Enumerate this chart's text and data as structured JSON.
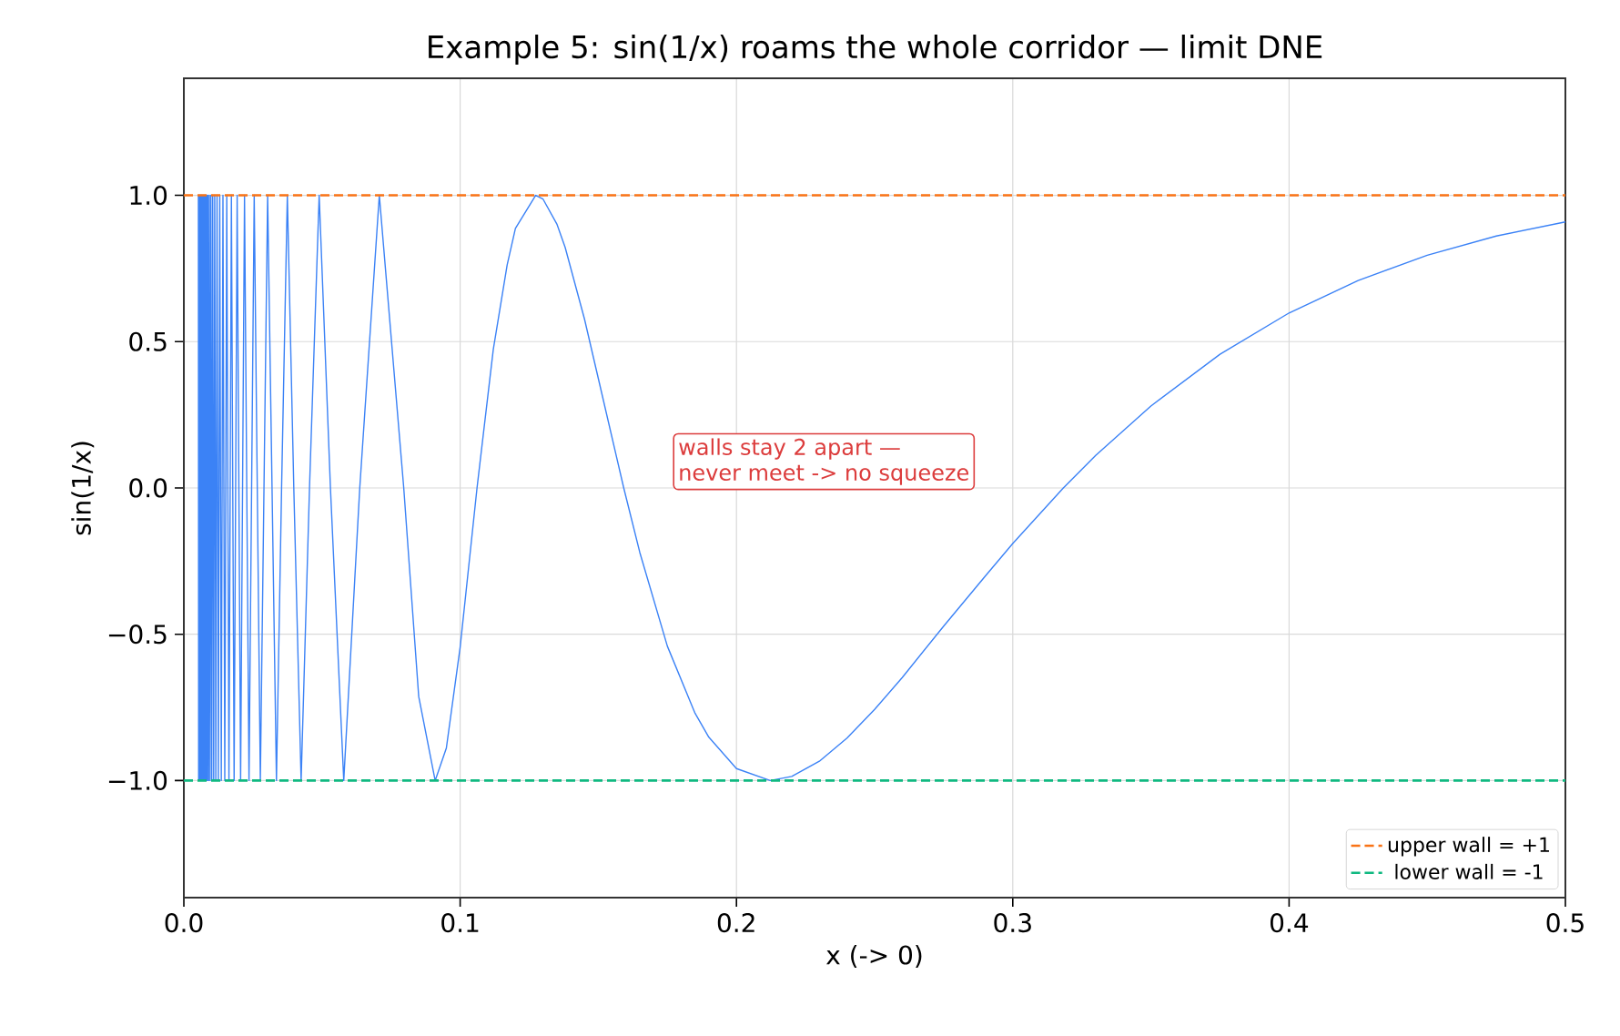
{
  "chart_data": {
    "type": "line",
    "title": "Example 5: sin(1/x) roams the whole corridor — limit DNE",
    "xlabel": "x  (-> 0)",
    "ylabel": "sin(1/x)",
    "x": [
      0.00526,
      0.00535,
      0.00544,
      0.00553,
      0.00563,
      0.00573,
      0.00584,
      0.00595,
      0.00606,
      0.00618,
      0.0063,
      0.00643,
      0.00656,
      0.0067,
      0.00685,
      0.007,
      0.00715,
      0.00732,
      0.00749,
      0.00767,
      0.00786,
      0.00806,
      0.00827,
      0.00849,
      0.00872,
      0.00897,
      0.00923,
      0.0095,
      0.00979,
      0.01011,
      0.01044,
      0.01079,
      0.01117,
      0.01157,
      0.01201,
      0.01248,
      0.01299,
      0.01355,
      0.01415,
      0.01481,
      0.01553,
      0.01632,
      0.01721,
      0.01819,
      0.01929,
      0.02054,
      0.02195,
      0.02358,
      0.02546,
      0.02768,
      0.03032,
      0.03351,
      0.03537,
      0.03745,
      0.03979,
      0.04244,
      0.04547,
      0.04897,
      0.05305,
      0.05787,
      0.06366,
      0.07074,
      0.07958,
      0.085,
      0.09095,
      0.095,
      0.1,
      0.1061,
      0.112,
      0.117,
      0.12,
      0.12732,
      0.13,
      0.135,
      0.138,
      0.145,
      0.15,
      0.1592,
      0.165,
      0.175,
      0.185,
      0.19,
      0.2,
      0.21221,
      0.22,
      0.23,
      0.24,
      0.25,
      0.26,
      0.275,
      0.29,
      0.3,
      0.3183,
      0.33,
      0.35,
      0.375,
      0.4,
      0.425,
      0.45,
      0.475,
      0.5
    ],
    "series": [
      {
        "color": "#3b82f6",
        "values": [
          1,
          -1,
          1,
          -1,
          1,
          -1,
          1,
          -1,
          1,
          -1,
          1,
          -1,
          1,
          -1,
          1,
          -1,
          1,
          -1,
          1,
          -1,
          1,
          -1,
          1,
          -1,
          1,
          -1,
          1,
          -1,
          1,
          -1,
          1,
          -1,
          1,
          -1,
          1,
          -1,
          1,
          -1,
          1,
          -1,
          1,
          -1,
          1,
          -1,
          1,
          -1,
          1,
          -1,
          1,
          -1,
          1,
          -1,
          0,
          1,
          0,
          -1,
          0,
          1,
          0,
          -1,
          0,
          1,
          0,
          -0.713,
          -1,
          -0.889,
          -0.544,
          0,
          0.474,
          0.762,
          0.887,
          1,
          0.987,
          0.902,
          0.822,
          0.577,
          0.374,
          0,
          -0.22,
          -0.541,
          -0.77,
          -0.852,
          -0.959,
          -1,
          -0.986,
          -0.934,
          -0.855,
          -0.757,
          -0.648,
          -0.472,
          -0.302,
          -0.19,
          0,
          0.111,
          0.28,
          0.457,
          0.598,
          0.709,
          0.795,
          0.861,
          0.909
        ]
      }
    ],
    "xlim": [
      0,
      0.5
    ],
    "ylim": [
      -1.4,
      1.4
    ],
    "xticks": [
      {
        "value": 0,
        "label": "0.0"
      },
      0.1,
      0.2,
      0.3,
      0.4,
      0.5
    ],
    "yticks": [
      {
        "value": -1,
        "label": "−1.0"
      },
      {
        "value": -0.5,
        "label": "−0.5"
      },
      {
        "value": 0,
        "label": "0.0"
      },
      0.5,
      {
        "value": 1,
        "label": "1.0"
      }
    ],
    "ref_lines": [
      {
        "axis": "y",
        "value": 1,
        "label": "upper wall = +1",
        "color": "#f97316",
        "line_style": "dashed"
      },
      {
        "axis": "y",
        "value": -1,
        "label": "lower wall = -1",
        "color": "#10b981",
        "line_style": "dashed"
      }
    ],
    "annotations": [
      "walls stay 2 apart —",
      "never meet -> no squeeze"
    ],
    "grid": true,
    "legend": "bottom right"
  }
}
